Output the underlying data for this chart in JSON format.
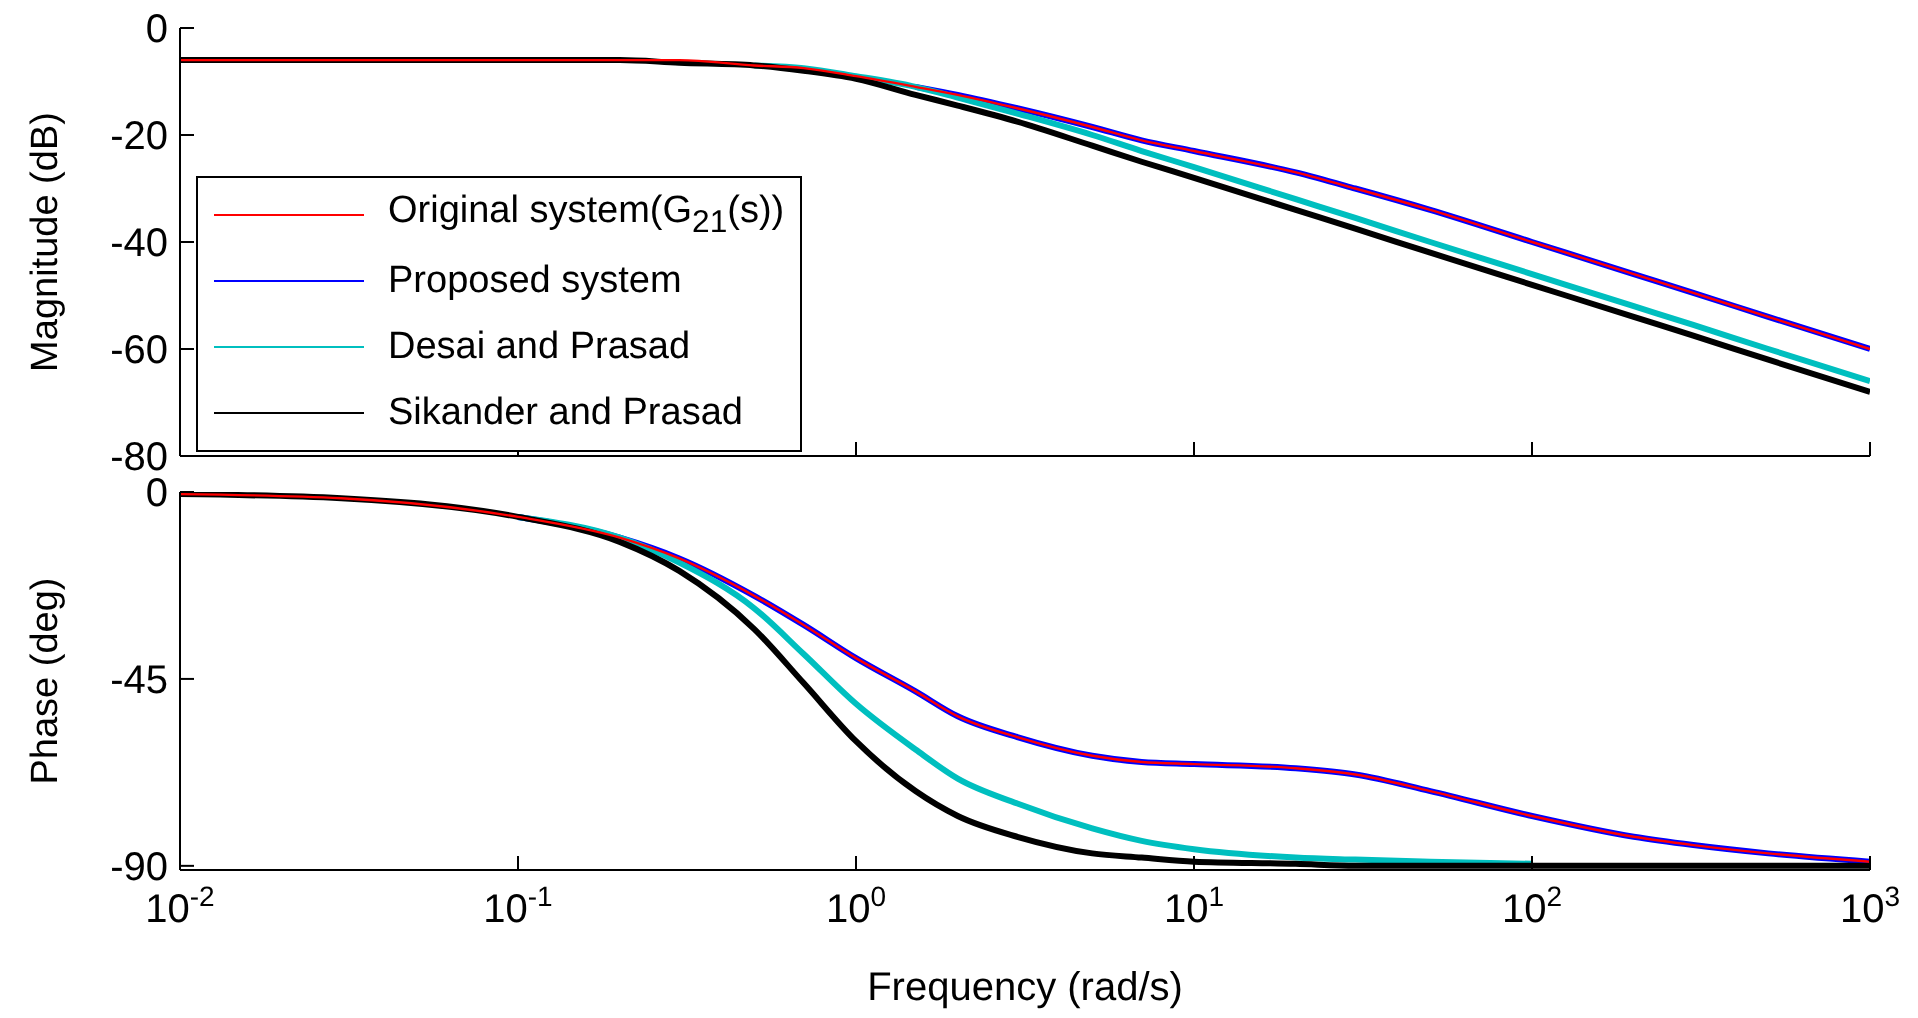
{
  "chart_data": [
    {
      "type": "line",
      "ylabel": "Magnitude (dB)",
      "log": "x",
      "xlim": [
        0.01,
        1000
      ],
      "xticks": [
        0.01,
        0.1,
        1,
        10,
        100,
        1000
      ],
      "ylim": [
        -80,
        0
      ],
      "yticks": [
        -80,
        -60,
        -40,
        -20,
        0
      ],
      "tick_labels": "y",
      "legend": "left",
      "x": [
        0.01,
        0.03,
        0.1,
        0.2,
        0.3,
        0.5,
        0.7,
        1,
        1.5,
        2,
        3,
        5,
        7,
        10,
        20,
        30,
        50,
        100,
        200,
        300,
        500,
        1000
      ],
      "series": [
        {
          "name": "Original system(G$_{21}$(s))",
          "color": "#ff0000",
          "values": [
            -6,
            -6,
            -6,
            -6,
            -6,
            -7,
            -7.5,
            -9,
            -11,
            -12.5,
            -15,
            -18.5,
            -21,
            -23,
            -27,
            -30,
            -34,
            -40,
            -46,
            -49.5,
            -54,
            -60
          ]
        },
        {
          "name": "Proposed system",
          "color": "#0000ff",
          "values": [
            null,
            null,
            null,
            null,
            null,
            null,
            null,
            null,
            -11,
            -12.5,
            -15,
            -18.5,
            -21,
            -23,
            -27,
            -30,
            -34,
            -40,
            -46,
            -49.5,
            -54,
            -60
          ]
        },
        {
          "name": "Desai and Prasad",
          "color": "#00bfbf",
          "values": [
            null,
            null,
            null,
            null,
            null,
            -7,
            -7.5,
            -9,
            -11,
            -13,
            -16,
            -20,
            -23,
            -26,
            -32,
            -35.5,
            -40,
            -46,
            -52,
            -55.5,
            -60,
            -66
          ]
        },
        {
          "name": "Sikander and Prasad",
          "color": "#000000",
          "values": [
            -6,
            -6,
            -6,
            -6,
            -6.5,
            -7,
            -8,
            -9.5,
            -12.5,
            -14.5,
            -17.5,
            -22,
            -25,
            -28,
            -34,
            -37.5,
            -42,
            -48,
            -54,
            -57.5,
            -62,
            -68
          ]
        }
      ]
    },
    {
      "type": "line",
      "ylabel": "Phase (deg)",
      "xlabel": "Frequency  (rad/s)",
      "log": "x",
      "xlim": [
        0.01,
        1000
      ],
      "xticks": [
        {
          "value": 0.01,
          "label": "10$^{-2}$"
        },
        {
          "value": 0.1,
          "label": "10$^{-1}$"
        },
        {
          "value": 1,
          "label": "10$^{0}$"
        },
        {
          "value": 10,
          "label": "10$^{1}$"
        },
        {
          "value": 100,
          "label": "10$^{2}$"
        },
        {
          "value": 1000,
          "label": "10$^{3}$"
        }
      ],
      "ylim": [
        -91,
        0
      ],
      "yticks": [
        -90,
        -45,
        0
      ],
      "x": [
        0.01,
        0.03,
        0.1,
        0.2,
        0.3,
        0.5,
        0.7,
        1,
        1.5,
        2,
        3,
        5,
        7,
        10,
        20,
        30,
        50,
        100,
        200,
        300,
        500,
        1000
      ],
      "series": [
        {
          "color": "#ff0000",
          "values": [
            -0.5,
            -1.5,
            -6,
            -11,
            -16,
            -25,
            -32,
            -40,
            -48,
            -54,
            -59,
            -63.5,
            -65,
            -65.5,
            -66.5,
            -68,
            -72,
            -78,
            -83,
            -85,
            -87,
            -89
          ]
        },
        {
          "color": "#0000ff",
          "values": [
            null,
            null,
            -6,
            -11,
            -16,
            -25,
            -32,
            -40,
            -48,
            -54,
            -59,
            -63.5,
            -65,
            -65.5,
            -66.5,
            -68,
            -72,
            -78,
            -83,
            -85,
            -87,
            -89
          ]
        },
        {
          "color": "#00bfbf",
          "values": [
            null,
            null,
            -6,
            -11,
            -17,
            -28,
            -39,
            -51,
            -62,
            -69,
            -75,
            -81,
            -84,
            -86,
            -88,
            -88.5,
            -89,
            -89.5,
            null,
            null,
            null,
            null
          ]
        },
        {
          "color": "#000000",
          "values": [
            -0.5,
            -1.5,
            -6,
            -12,
            -19,
            -33,
            -46,
            -60,
            -72,
            -78,
            -83,
            -87,
            -88,
            -89,
            -89.5,
            -90,
            -90,
            -90,
            -90,
            -90,
            -90,
            -90
          ]
        }
      ]
    }
  ]
}
